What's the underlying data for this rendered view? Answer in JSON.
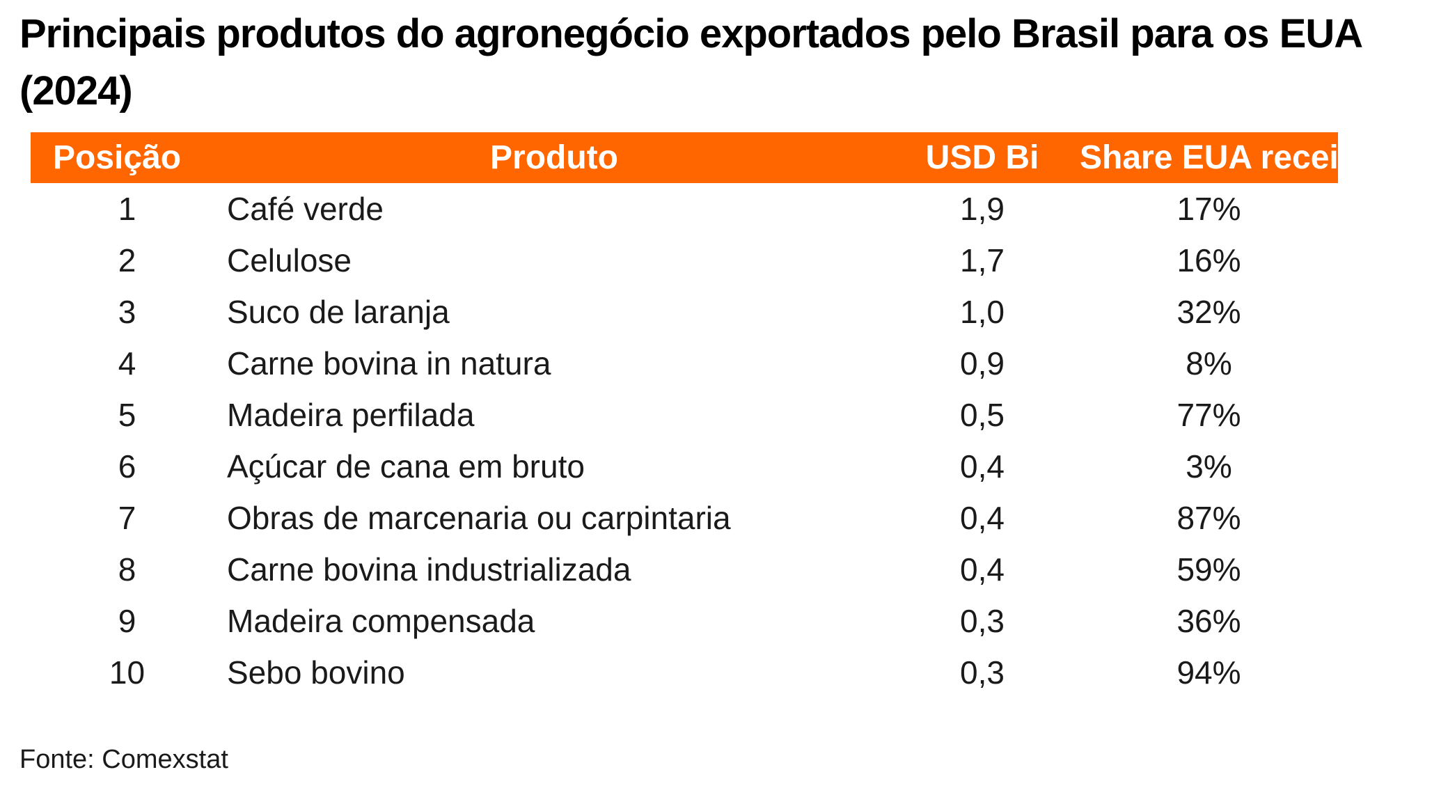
{
  "chart_data": {
    "type": "table",
    "title": "Principais produtos do agronegócio exportados pelo Brasil para os EUA (2024)",
    "columns": [
      "Posição",
      "Produto",
      "USD Bi",
      "Share EUA receita"
    ],
    "rows": [
      {
        "pos": "1",
        "produto": "Café verde",
        "usd": "1,9",
        "share": "17%"
      },
      {
        "pos": "2",
        "produto": "Celulose",
        "usd": "1,7",
        "share": "16%"
      },
      {
        "pos": "3",
        "produto": "Suco de laranja",
        "usd": "1,0",
        "share": "32%"
      },
      {
        "pos": "4",
        "produto": "Carne bovina in natura",
        "usd": "0,9",
        "share": "8%"
      },
      {
        "pos": "5",
        "produto": "Madeira perfilada",
        "usd": "0,5",
        "share": "77%"
      },
      {
        "pos": "6",
        "produto": "Açúcar de cana em bruto",
        "usd": "0,4",
        "share": "3%"
      },
      {
        "pos": "7",
        "produto": "Obras de marcenaria ou carpintaria",
        "usd": "0,4",
        "share": "87%"
      },
      {
        "pos": "8",
        "produto": "Carne bovina industrializada",
        "usd": "0,4",
        "share": "59%"
      },
      {
        "pos": "9",
        "produto": "Madeira compensada",
        "usd": "0,3",
        "share": "36%"
      },
      {
        "pos": "10",
        "produto": "Sebo bovino",
        "usd": "0,3",
        "share": "94%"
      }
    ],
    "source": "Fonte: Comexstat",
    "header_color": "#ff6600"
  }
}
